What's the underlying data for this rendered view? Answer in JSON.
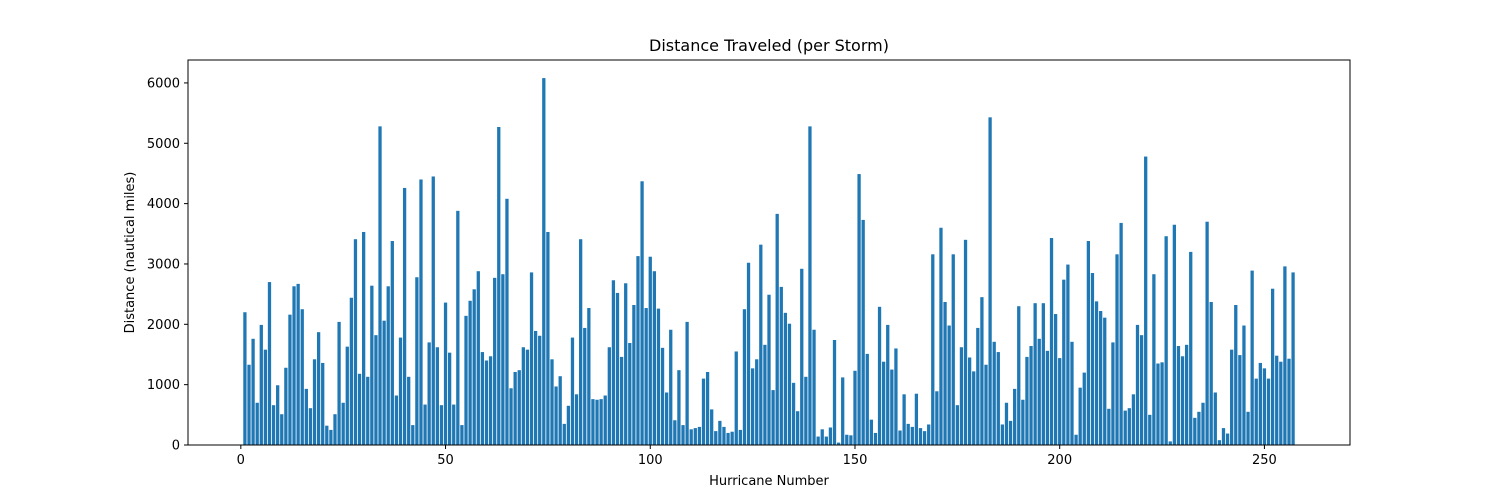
{
  "chart_data": {
    "type": "bar",
    "title": "Distance Traveled (per Storm)",
    "xlabel": "Hurricane Number",
    "ylabel": "Distance (nautical miles)",
    "xlim": [
      -12.9,
      270.9
    ],
    "ylim": [
      0,
      6380
    ],
    "xticks": [
      0,
      50,
      100,
      150,
      200,
      250
    ],
    "yticks": [
      0,
      1000,
      2000,
      3000,
      4000,
      5000,
      6000
    ],
    "grid": false,
    "legend": "none",
    "bar_color": "#1f77b4",
    "x_start": 1,
    "values": [
      2200,
      1330,
      1760,
      700,
      1990,
      1580,
      2700,
      660,
      990,
      510,
      1280,
      2160,
      2630,
      2670,
      2250,
      930,
      610,
      1420,
      1870,
      1360,
      320,
      250,
      510,
      2040,
      700,
      1630,
      2440,
      3410,
      1180,
      3530,
      1130,
      2640,
      1820,
      5280,
      2060,
      2630,
      3380,
      820,
      1780,
      4260,
      1130,
      330,
      2780,
      4400,
      670,
      1700,
      4450,
      1620,
      660,
      2360,
      1530,
      670,
      3880,
      330,
      2140,
      2390,
      2580,
      2880,
      1540,
      1400,
      1470,
      2770,
      5270,
      2830,
      4080,
      940,
      1210,
      1240,
      1620,
      1580,
      2860,
      1890,
      1810,
      6080,
      3530,
      1420,
      970,
      1140,
      350,
      650,
      1780,
      840,
      3410,
      1940,
      2270,
      760,
      750,
      760,
      820,
      1620,
      2730,
      2520,
      1460,
      2680,
      1690,
      2320,
      3130,
      4370,
      2270,
      3120,
      2880,
      2260,
      1610,
      870,
      1910,
      410,
      1240,
      330,
      2040,
      260,
      280,
      300,
      1100,
      1210,
      590,
      230,
      400,
      300,
      200,
      220,
      1550,
      250,
      2250,
      3020,
      1270,
      1420,
      3320,
      1660,
      2490,
      910,
      3830,
      2620,
      2190,
      2010,
      1030,
      560,
      2920,
      1130,
      5280,
      1910,
      140,
      260,
      140,
      290,
      1740,
      40,
      1120,
      170,
      160,
      1230,
      4490,
      3730,
      1510,
      420,
      200,
      2290,
      1380,
      1990,
      1250,
      1600,
      240,
      840,
      350,
      300,
      850,
      280,
      230,
      340,
      3160,
      890,
      3600,
      2370,
      1980,
      3160,
      660,
      1620,
      3400,
      1450,
      1220,
      1940,
      2450,
      1330,
      5430,
      1710,
      1540,
      340,
      700,
      400,
      930,
      2300,
      750,
      1460,
      1640,
      2350,
      1760,
      2350,
      1560,
      3430,
      2170,
      1440,
      2740,
      2990,
      1710,
      170,
      950,
      1200,
      3380,
      2850,
      2380,
      2220,
      2110,
      600,
      1700,
      3160,
      3680,
      570,
      610,
      840,
      1990,
      1820,
      4780,
      500,
      2830,
      1350,
      1370,
      3460,
      60,
      3650,
      1640,
      1470,
      1660,
      3200,
      450,
      550,
      700,
      3700,
      2370,
      870,
      80,
      280,
      190,
      1580,
      2320,
      1490,
      1980,
      550,
      2890,
      1100,
      1360,
      1270,
      1100,
      2590,
      1480,
      1380,
      2960,
      1430,
      2860
    ]
  }
}
